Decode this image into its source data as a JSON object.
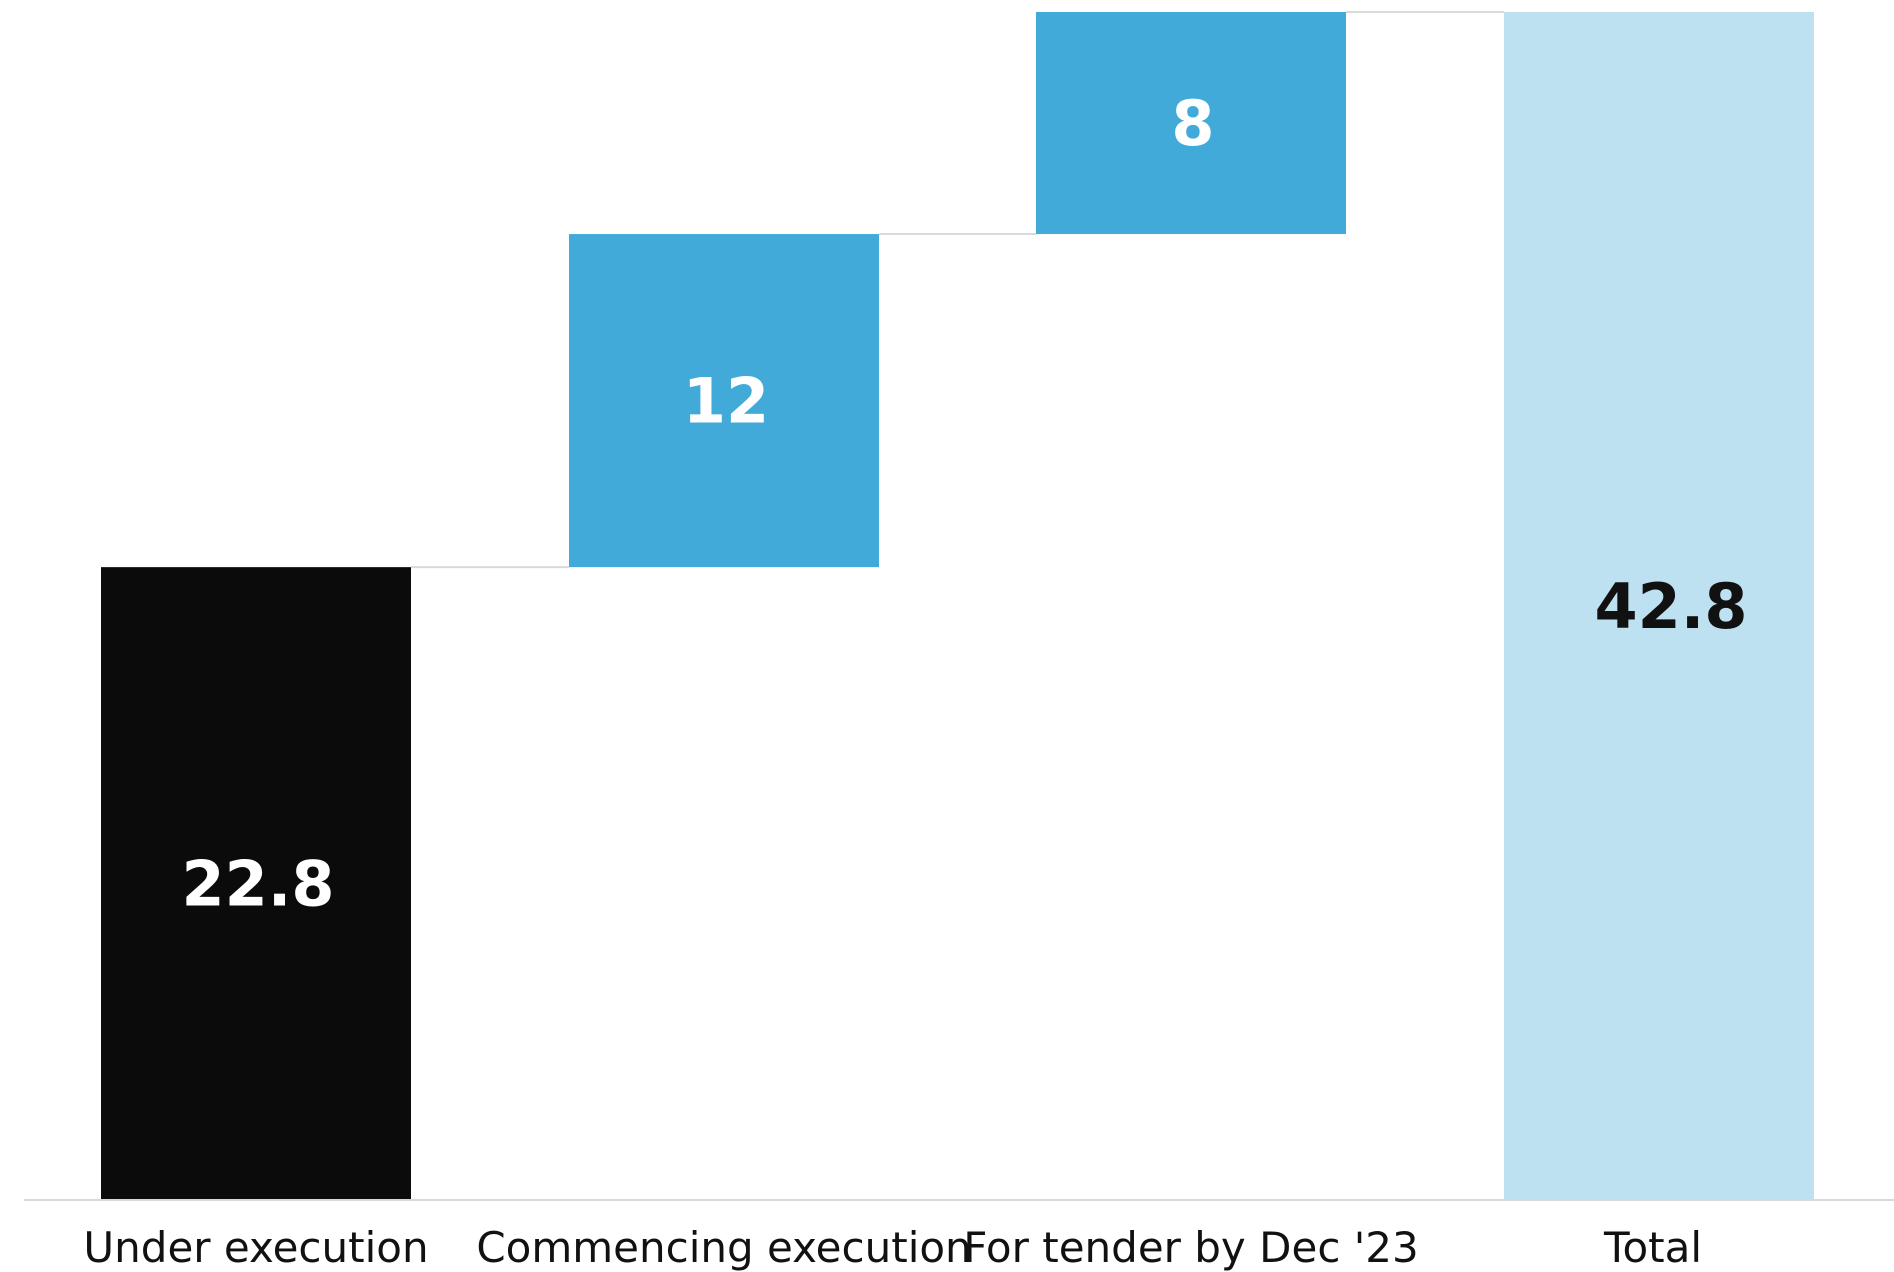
{
  "chart_data": {
    "type": "bar",
    "subtype": "waterfall",
    "categories": [
      "Under execution",
      "Commencing execution",
      "For tender by Dec '23",
      "Total"
    ],
    "values": [
      22.8,
      12,
      8,
      42.8
    ],
    "value_labels": [
      "22.8",
      "12",
      "8",
      "42.8"
    ],
    "kinds": [
      "base",
      "increment",
      "increment",
      "total"
    ],
    "title": "",
    "xlabel": "",
    "ylabel": "",
    "ylim": [
      0,
      42.8
    ],
    "grid": false,
    "legend": "none",
    "colors": {
      "base": "#0b0b0b",
      "increment": "#42aad8",
      "total": "#bee1f1",
      "connector": "#d9d9d9",
      "axis": "#d9d9d9"
    },
    "label_colors": [
      "#ffffff",
      "#ffffff",
      "#ffffff",
      "#111111"
    ]
  }
}
